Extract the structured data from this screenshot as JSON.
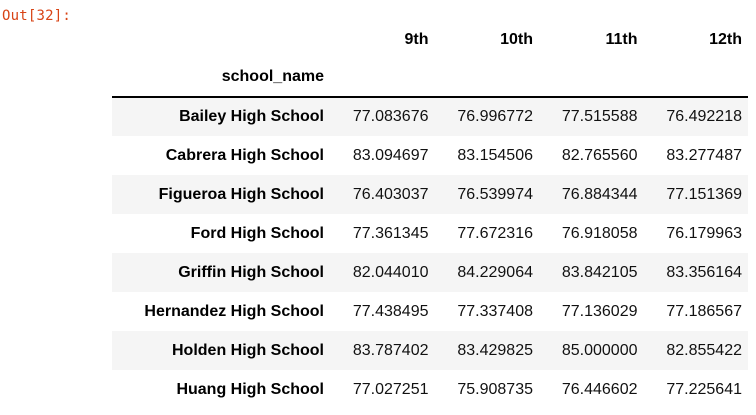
{
  "cell": {
    "prompt": "Out[32]:"
  },
  "table": {
    "index_name": "school_name",
    "columns": [
      "9th",
      "10th",
      "11th",
      "12th"
    ],
    "rows": [
      {
        "name": "Bailey High School",
        "values": [
          "77.083676",
          "76.996772",
          "77.515588",
          "76.492218"
        ]
      },
      {
        "name": "Cabrera High School",
        "values": [
          "83.094697",
          "83.154506",
          "82.765560",
          "83.277487"
        ]
      },
      {
        "name": "Figueroa High School",
        "values": [
          "76.403037",
          "76.539974",
          "76.884344",
          "77.151369"
        ]
      },
      {
        "name": "Ford High School",
        "values": [
          "77.361345",
          "77.672316",
          "76.918058",
          "76.179963"
        ]
      },
      {
        "name": "Griffin High School",
        "values": [
          "82.044010",
          "84.229064",
          "83.842105",
          "83.356164"
        ]
      },
      {
        "name": "Hernandez High School",
        "values": [
          "77.438495",
          "77.337408",
          "77.136029",
          "77.186567"
        ]
      },
      {
        "name": "Holden High School",
        "values": [
          "83.787402",
          "83.429825",
          "85.000000",
          "82.855422"
        ]
      },
      {
        "name": "Huang High School",
        "values": [
          "77.027251",
          "75.908735",
          "76.446602",
          "77.225641"
        ]
      }
    ]
  },
  "colors": {
    "prompt": "#d84315",
    "stripe": "#f5f5f5",
    "header_rule": "#000000"
  }
}
